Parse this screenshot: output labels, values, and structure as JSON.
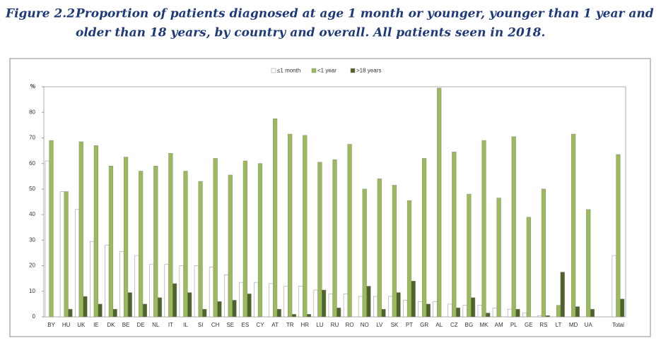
{
  "chart_data": {
    "type": "bar",
    "title_number": "Figure 2.2",
    "title": [
      "Proportion of patients diagnosed at age 1 month or younger, younger than 1 year and",
      "older than 18 years, by country and overall. All patients seen in 2018."
    ],
    "categories": [
      "BY",
      "HU",
      "UK",
      "IE",
      "DK",
      "BE",
      "DE",
      "NL",
      "IT",
      "IL",
      "SI",
      "CH",
      "SE",
      "ES",
      "CY",
      "AT",
      "TR",
      "HR",
      "LU",
      "RU",
      "RO",
      "NO",
      "LV",
      "SK",
      "PT",
      "GR",
      "AL",
      "CZ",
      "BG",
      "MK",
      "AM",
      "PL",
      "GE",
      "RS",
      "LT",
      "MD",
      "UA",
      null,
      "Total"
    ],
    "series": [
      {
        "name": "≤1 month",
        "color": "#ffffff",
        "values": [
          61,
          49,
          42,
          29.5,
          28,
          25.5,
          24,
          20.5,
          20.5,
          20,
          20,
          19.5,
          16.5,
          13.5,
          13.5,
          13,
          12,
          12,
          10.5,
          9,
          9,
          8,
          8,
          8,
          6.5,
          6,
          6,
          5,
          4.5,
          4.5,
          3.5,
          3,
          1.5,
          0.5,
          0,
          0,
          0,
          null,
          24
        ]
      },
      {
        "name": "<1 year",
        "color": "#9bbb59",
        "values": [
          69,
          49,
          68.5,
          67,
          59,
          62.5,
          57,
          59,
          64,
          57,
          53,
          62,
          55.5,
          61,
          60,
          77.5,
          71.5,
          71,
          60.5,
          61.5,
          67.5,
          50,
          54,
          51.5,
          45.5,
          62,
          89.5,
          64.5,
          48,
          69,
          46.5,
          70.5,
          39,
          50,
          4.5,
          71.5,
          42,
          null,
          63.5
        ]
      },
      {
        "name": ">18 years",
        "color": "#4f6228",
        "values": [
          0,
          3,
          8,
          5,
          3,
          9.5,
          5,
          7.5,
          13,
          9.5,
          3,
          6,
          6.5,
          9,
          0,
          3,
          1,
          1,
          10.5,
          3.5,
          0,
          12,
          3,
          9.5,
          14,
          5,
          0,
          3.5,
          7.5,
          1.5,
          0,
          3,
          0,
          0.5,
          17.5,
          4,
          3,
          null,
          7
        ]
      }
    ],
    "ylim": [
      0,
      90
    ],
    "yticks": [
      0,
      10,
      20,
      30,
      40,
      50,
      60,
      70,
      80,
      {
        "value": 90,
        "label": "%"
      }
    ],
    "grid": false
  }
}
